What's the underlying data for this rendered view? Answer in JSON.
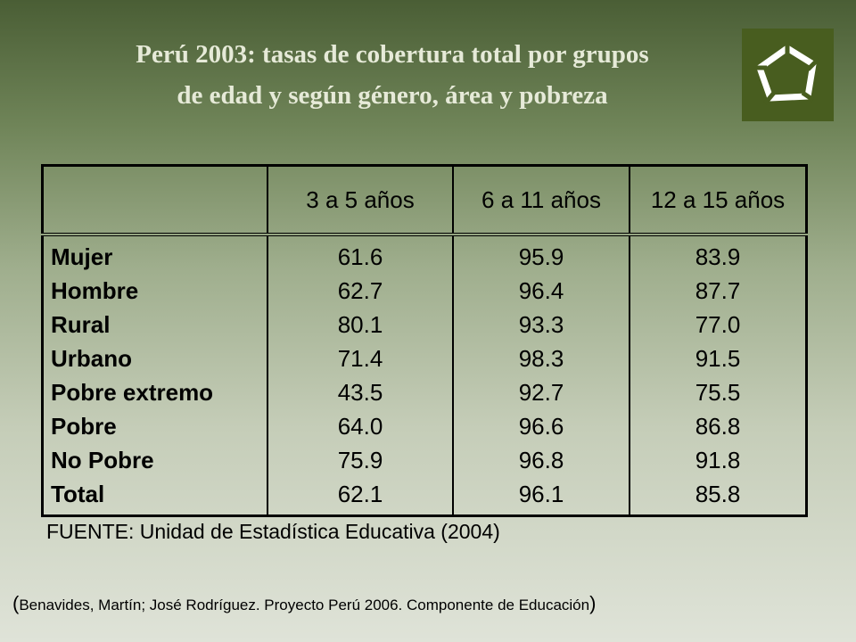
{
  "title": {
    "line1": "Perú 2003: tasas de cobertura total por grupos",
    "line2": "de edad y según género, área y pobreza"
  },
  "logo": {
    "icon": "pentagon-logo-icon",
    "color": "#485d1f"
  },
  "table": {
    "headers": [
      "",
      "3 a 5 años",
      "6 a 11 años",
      "12 a 15 años"
    ],
    "rows": [
      {
        "label": "Mujer",
        "values": [
          "61.6",
          "95.9",
          "83.9"
        ]
      },
      {
        "label": "Hombre",
        "values": [
          "62.7",
          "96.4",
          "87.7"
        ]
      },
      {
        "label": "Rural",
        "values": [
          "80.1",
          "93.3",
          "77.0"
        ]
      },
      {
        "label": "Urbano",
        "values": [
          "71.4",
          "98.3",
          "91.5"
        ]
      },
      {
        "label": "Pobre extremo",
        "values": [
          "43.5",
          "92.7",
          "75.5"
        ]
      },
      {
        "label": "Pobre",
        "values": [
          "64.0",
          "96.6",
          "86.8"
        ]
      },
      {
        "label": "No Pobre",
        "values": [
          "75.9",
          "96.8",
          "91.8"
        ]
      },
      {
        "label": "Total",
        "values": [
          "62.1",
          "96.1",
          "85.8"
        ]
      }
    ]
  },
  "source": "FUENTE: Unidad de Estadística Educativa (2004)",
  "citation": {
    "open": "(",
    "text": "Benavides, Martín; José Rodríguez. Proyecto Perú 2006. Componente de Educación",
    "close": ")"
  }
}
